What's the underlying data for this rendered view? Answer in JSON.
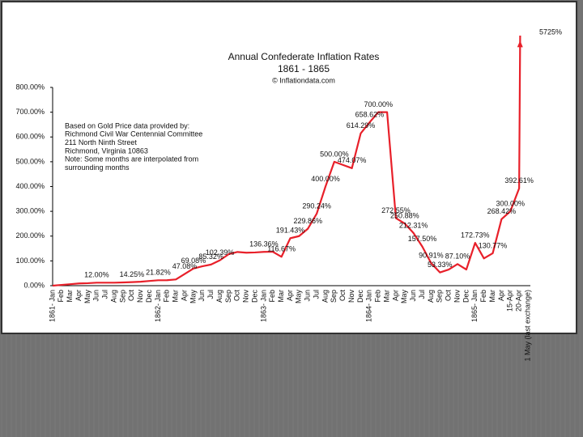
{
  "chart_data": {
    "type": "line",
    "title": "Annual Confederate Inflation Rates",
    "subtitle": "1861 - 1865",
    "source": "© Inflationdata.com",
    "note": [
      "Based on Gold Price data provided by:",
      "Richmond Civil War Centennial Committee",
      "211 North Ninth Street",
      "Richmond, Virginia 10863",
      "Note: Some months are interpolated from",
      "surrounding months"
    ],
    "categories": [
      "1861- Jan",
      "Feb",
      "Mar",
      "Apr",
      "May",
      "Jun",
      "Jul",
      "Aug",
      "Sep",
      "Oct",
      "Nov",
      "Dec",
      "1862- Jan",
      "Feb",
      "Mar",
      "Apr",
      "May",
      "Jun",
      "Jul",
      "Aug",
      "Sep",
      "Oct",
      "Nov",
      "Dec",
      "1863- Jan",
      "Feb",
      "Mar",
      "Apr",
      "May",
      "Jun",
      "Jul",
      "Aug",
      "Sep",
      "Oct",
      "Nov",
      "Dec",
      "1864- Jan",
      "Feb",
      "Mar",
      "Apr",
      "May",
      "Jun",
      "Jul",
      "Aug",
      "Sep",
      "Oct",
      "Nov",
      "Dec",
      "1865- Jan",
      "Feb",
      "Mar",
      "Apr",
      "15-Apr",
      "20-Apr",
      "1 May (last exchange)"
    ],
    "series": [
      {
        "name": "Inflation",
        "color": "#e8202a",
        "values": [
          0,
          3,
          6,
          9,
          10,
          12,
          12,
          12,
          13,
          14.25,
          16,
          19,
          21.82,
          22,
          25,
          47.08,
          69.08,
          78,
          85.32,
          102.39,
          127,
          136,
          133,
          134,
          136.36,
          137,
          116.67,
          191.43,
          200,
          229.86,
          290.24,
          400,
          500,
          487,
          474.07,
          614.29,
          658.62,
          700,
          700,
          272.55,
          250.88,
          212.31,
          157.5,
          90.91,
          53.33,
          65,
          87.1,
          65,
          172.73,
          110,
          130.77,
          268.42,
          300,
          392.61,
          5725
        ],
        "value_labels": [
          null,
          null,
          null,
          null,
          null,
          "12.00%",
          null,
          null,
          null,
          "14.25%",
          null,
          null,
          "21.82%",
          null,
          null,
          "47.08%",
          "69.08%",
          null,
          "85.32%",
          "102.39%",
          null,
          null,
          null,
          null,
          "136.36%",
          null,
          "116.67%",
          "191.43%",
          null,
          "229.86%",
          "290.24%",
          "400.00%",
          "500.00%",
          null,
          "474.07%",
          "614.29%",
          "658.62%",
          "700.00%",
          null,
          "272.55%",
          "250.88%",
          "212.31%",
          "157.50%",
          "90.91%",
          "53.33%",
          null,
          "87.10%",
          null,
          "172.73%",
          null,
          "130.77%",
          "268.42%",
          "300.00%",
          "392.61%",
          "5725%"
        ]
      }
    ],
    "ylim": [
      0,
      800
    ],
    "yticks": [
      {
        "value": 0,
        "label": "0.00%"
      },
      {
        "value": 100,
        "label": "100.00%"
      },
      {
        "value": 200,
        "label": "200.00%"
      },
      {
        "value": 300,
        "label": "300.00%"
      },
      {
        "value": 400,
        "label": "400.00%"
      },
      {
        "value": 500,
        "label": "500.00%"
      },
      {
        "value": 600,
        "label": "600.00%"
      },
      {
        "value": 700,
        "label": "700.00%"
      },
      {
        "value": 800,
        "label": "800.00%"
      }
    ],
    "grid": false
  }
}
